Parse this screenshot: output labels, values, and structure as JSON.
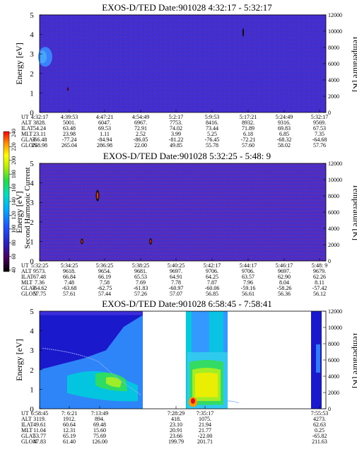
{
  "chart_data": [
    {
      "type": "heatmap",
      "title": "EXOS-D/TED   Date:901028  4:32:17 - 5:32:17",
      "ylabel": "Energy [eV]",
      "y2label": "Temperature [K]",
      "ylim": [
        0,
        5
      ],
      "y_ticks": [
        "0",
        "1",
        "2",
        "3",
        "4",
        "5"
      ],
      "y2lim": [
        0,
        12000
      ],
      "y2_ticks": [
        "0",
        "2000",
        "4000",
        "6000",
        "8000",
        "10000",
        "12000"
      ],
      "background": "#3c2fd8",
      "table": {
        "row_labels": [
          "UT",
          "ALT",
          "ILAT",
          "MLT",
          "GLAT",
          "GLON"
        ],
        "columns": [
          [
            "4:32:17",
            "3828.",
            "54.24",
            "23.11",
            "-66.48",
            "258.98"
          ],
          [
            "4:39:53",
            "5001.",
            "63.48",
            "23.98",
            "-77.24",
            "265.04"
          ],
          [
            "4:47:21",
            "6047.",
            "69.53",
            "1.11",
            "-84.94",
            "286.98"
          ],
          [
            "4:54:49",
            "6967.",
            "72.91",
            "2.52",
            "-86.05",
            "22.00"
          ],
          [
            "5:2:17",
            "7753.",
            "74.02",
            "3.99",
            "-81.22",
            "49.85"
          ],
          [
            "5:9:53",
            "8416.",
            "73.44",
            "5.25",
            "-76.45",
            "55.78"
          ],
          [
            "5:17:21",
            "8932.",
            "71.89",
            "6.18",
            "-72.21",
            "57.60"
          ],
          [
            "5:24:49",
            "9316.",
            "69.83",
            "6.85",
            "-68.32",
            "58.02"
          ],
          [
            "5:32:17",
            "9569.",
            "67.53",
            "7.35",
            "-64.68",
            "57.76"
          ]
        ]
      }
    },
    {
      "type": "heatmap",
      "title": "EXOS-D/TED   Date:901028  5:32:25 - 5:48: 9",
      "ylabel": "Energy [eV]",
      "y2label": "Temperature [K]",
      "ylim": [
        0,
        5
      ],
      "y_ticks": [
        "0",
        "1",
        "2",
        "3",
        "4",
        "5"
      ],
      "y2lim": [
        0,
        12000
      ],
      "y2_ticks": [
        "0",
        "2000",
        "4000",
        "6000",
        "8000",
        "10000",
        "12000"
      ],
      "background": "#3c2fd8",
      "table": {
        "row_labels": [
          "UT",
          "ALT",
          "ILAT",
          "MLT",
          "GLAT",
          "GLON"
        ],
        "columns": [
          [
            "5:32:25",
            "9573.",
            "67.48",
            "7.36",
            "-64.62",
            "57.75"
          ],
          [
            "5:34:25",
            "9618.",
            "66.84",
            "7.48",
            "-63.68",
            "57.61"
          ],
          [
            "5:36:25",
            "9654.",
            "66.19",
            "7.58",
            "-62.75",
            "57.44"
          ],
          [
            "5:38:25",
            "9681.",
            "65.53",
            "7.69",
            "-61.83",
            "57.26"
          ],
          [
            "5:40:25",
            "9697.",
            "64.91",
            "7.78",
            "-60.97",
            "57.07"
          ],
          [
            "5:42:17",
            "9706.",
            "64.25",
            "7.87",
            "-60.06",
            "56.85"
          ],
          [
            "5:44:17",
            "9706.",
            "63.57",
            "7.96",
            "-59.16",
            "56.61"
          ],
          [
            "5:46:17",
            "9697.",
            "62.90",
            "8.04",
            "-58.26",
            "56.36"
          ],
          [
            "5:48: 9",
            "9679.",
            "62.26",
            "8.11",
            "-57.42",
            "56.12"
          ]
        ]
      }
    },
    {
      "type": "heatmap",
      "title": "EXOS-D/TED   Date:901028  6:58:45 - 7:58:41",
      "ylabel": "Energy [eV]",
      "y2label": "Temperature [K]",
      "ylim": [
        0,
        5
      ],
      "y_ticks": [
        "0",
        "1",
        "2",
        "3",
        "4",
        "5"
      ],
      "y2lim": [
        0,
        12000
      ],
      "y2_ticks": [
        "0",
        "2000",
        "4000",
        "6000",
        "8000",
        "10000",
        "12000"
      ],
      "background": "#3c2fd8",
      "table": {
        "row_labels": [
          "UT",
          "ALT",
          "ILAT",
          "MLT",
          "GLAT",
          "GLON"
        ],
        "columns": [
          [
            "6:58:45",
            "3119.",
            "49.61",
            "11.04",
            "53.77",
            "47.83"
          ],
          [
            "7: 6:21",
            "1912.",
            "60.64",
            "12.31",
            "65.19",
            "61.40"
          ],
          [
            "7:13:49",
            "894.",
            "69.48",
            "15.60",
            "75.69",
            "126.00"
          ],
          [
            "7:28:29",
            "418.",
            "23.10",
            "20.91",
            "23.66",
            "199.79"
          ],
          [
            "7:35:17",
            "1075.",
            "21.94",
            "21.77",
            "-22.00",
            "201.71"
          ],
          [
            "7:55:53",
            "4273.",
            "62.63",
            "0.25",
            "-65.82",
            "211.63"
          ]
        ]
      }
    }
  ],
  "colorbar": {
    "label": "Second Harmonic Current",
    "ticks": [
      "40",
      "60",
      "80",
      "100",
      "120",
      "140",
      "160",
      "180",
      "200",
      "220",
      "240"
    ]
  },
  "colors": {
    "background": "#3c2fd8",
    "noise": "#7a1f5a",
    "dark_blue": "#1a1acc",
    "light_blue": "#3399ff",
    "cyan": "#00ccdd",
    "green": "#33dd55",
    "yellow": "#eeee00",
    "orange": "#ff9900",
    "red": "#dd1111"
  }
}
